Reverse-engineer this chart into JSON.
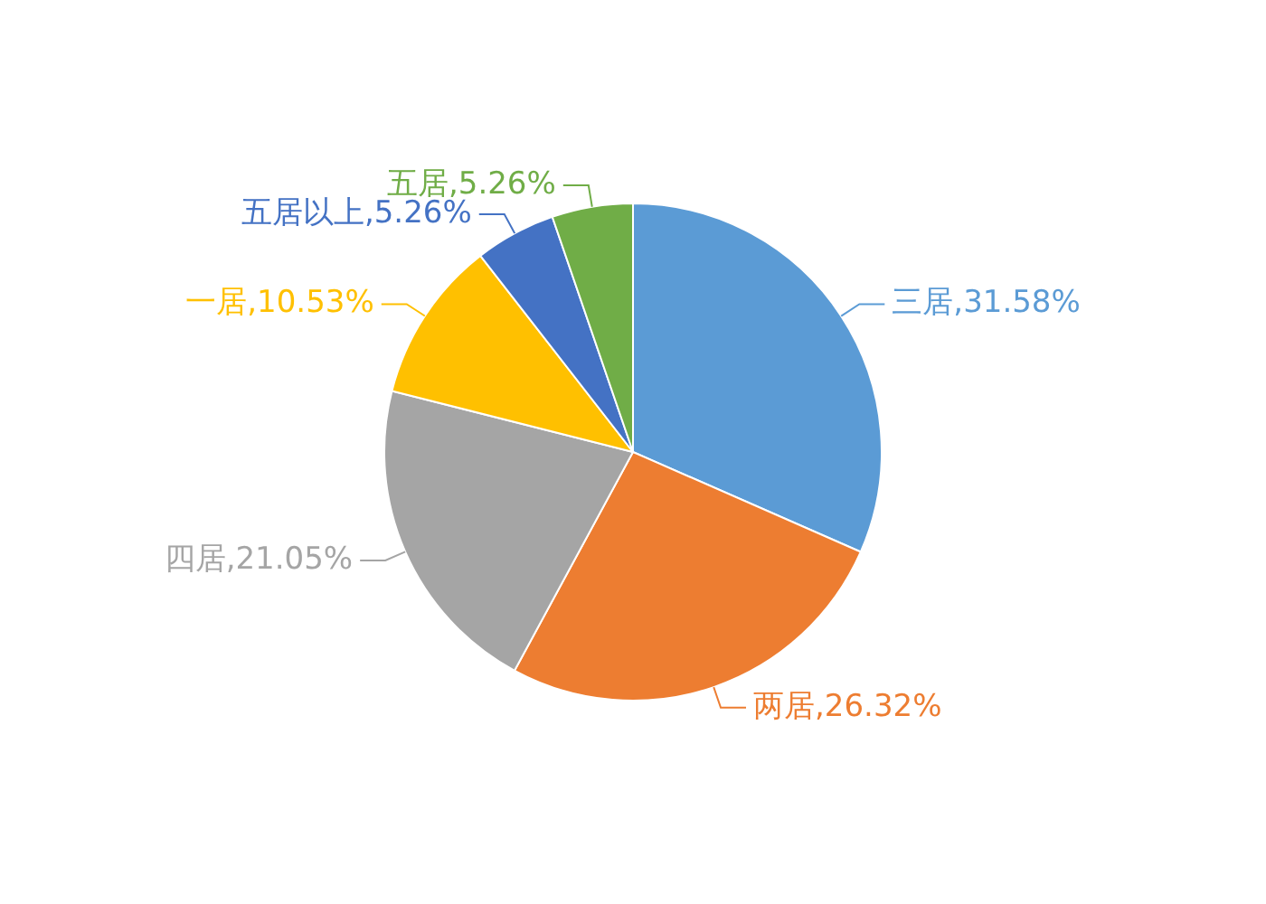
{
  "chart_data": {
    "type": "pie",
    "categories": [
      "三居",
      "两居",
      "四居",
      "一居",
      "五居以上",
      "五居"
    ],
    "values": [
      31.58,
      26.32,
      21.05,
      10.53,
      5.26,
      5.26
    ],
    "value_labels": [
      "31.58%",
      "26.32%",
      "21.05%",
      "10.53%",
      "5.26%",
      "5.26%"
    ],
    "colors": [
      "#5b9bd5",
      "#ed7d31",
      "#a5a5a5",
      "#ffc000",
      "#4472c4",
      "#70ad47"
    ],
    "legend": false
  }
}
